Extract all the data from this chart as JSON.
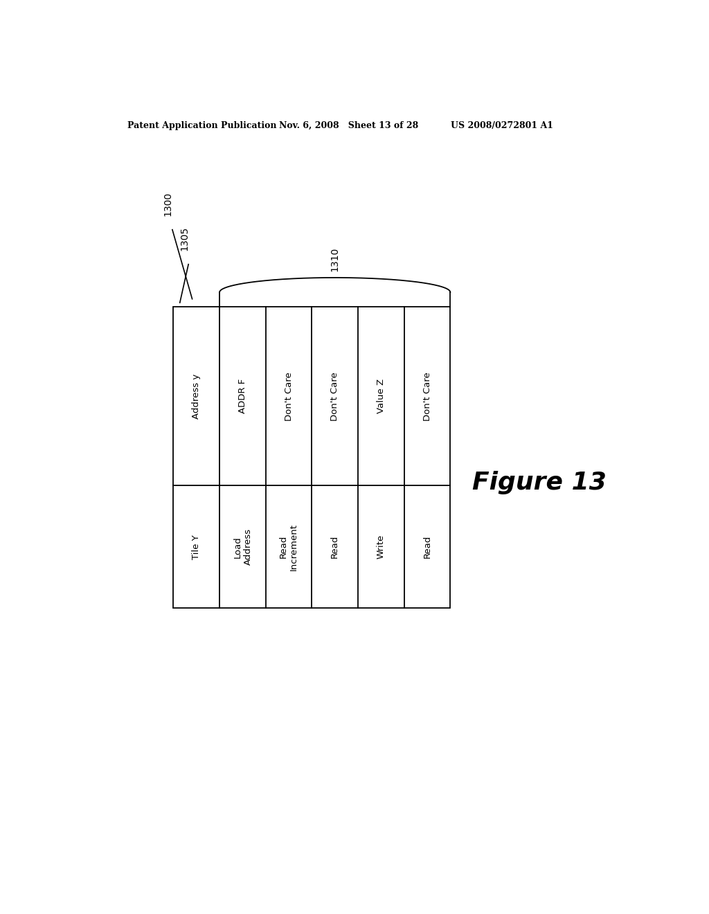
{
  "header_left": "Patent Application Publication",
  "header_mid": "Nov. 6, 2008   Sheet 13 of 28",
  "header_right": "US 2008/0272801 A1",
  "figure_label": "Figure 13",
  "ref_1300": "1300",
  "ref_1305": "1305",
  "ref_1310": "1310",
  "top_row_labels": [
    "Address y",
    "ADDR F",
    "Don't Care",
    "Don't Care",
    "Value Z",
    "Don't Care"
  ],
  "bottom_row_labels": [
    "Tile Y",
    "Load\nAddress",
    "Read\nIncrement",
    "Read",
    "Write",
    "Read"
  ],
  "background_color": "#ffffff",
  "table_line_color": "#000000",
  "text_color": "#000000"
}
